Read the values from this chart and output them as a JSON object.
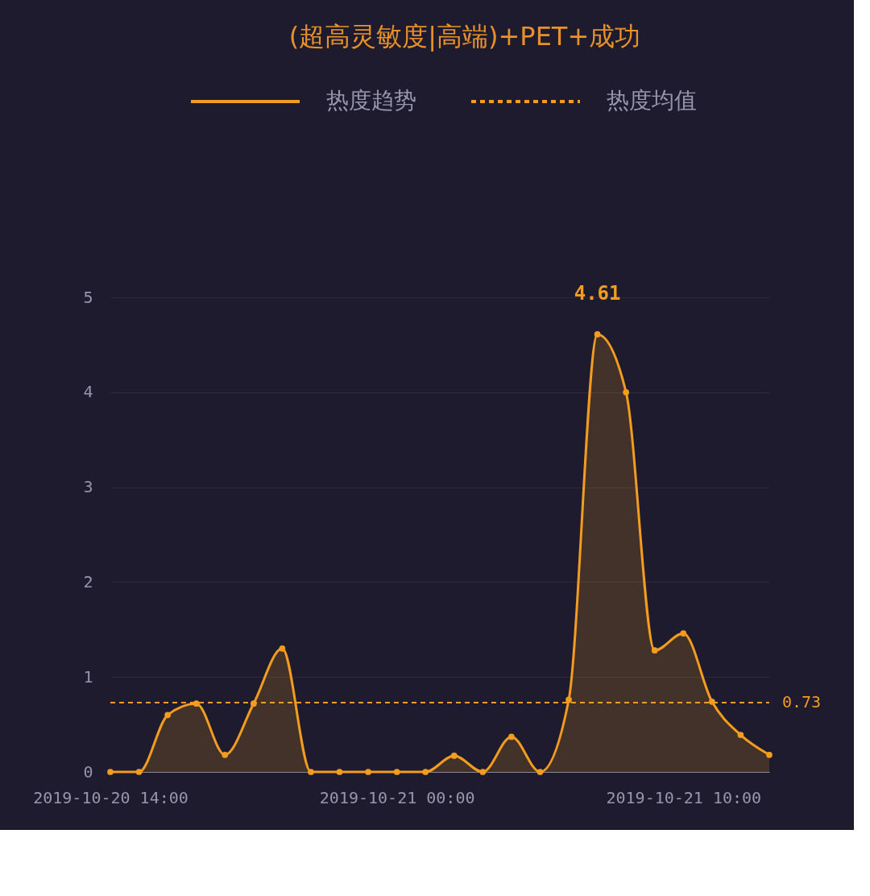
{
  "chart_data": {
    "type": "area",
    "title": "(超高灵敏度|高端)+PET+成功",
    "categories": [
      "2019-10-20 14:00",
      null,
      null,
      null,
      null,
      null,
      null,
      null,
      null,
      null,
      "2019-10-21 00:00",
      null,
      null,
      null,
      null,
      null,
      null,
      null,
      null,
      null,
      "2019-10-21 10:00",
      null,
      null,
      null
    ],
    "series": [
      {
        "name": "热度趋势",
        "color": "#f39c1f",
        "values": [
          0,
          0,
          0.6,
          0.72,
          0.18,
          0.72,
          1.3,
          0,
          0,
          0,
          0,
          0,
          0.17,
          0,
          0.37,
          0,
          0.76,
          4.61,
          4.0,
          1.28,
          1.46,
          0.74,
          0.39,
          0.18
        ]
      }
    ],
    "ylim": [
      0,
      5
    ],
    "yticks": [
      0,
      1,
      2,
      3,
      4,
      5
    ],
    "grid": "y",
    "legend": "top",
    "marker": "circle",
    "line_style": "solid",
    "ref_lines": [
      {
        "axis": "y",
        "value": 0.73,
        "label": "热度均值",
        "color": "#f39c1f",
        "line_style": "dashed"
      }
    ],
    "annotations": [
      {
        "text": "4.61",
        "y": 4.61
      },
      "0.73"
    ]
  }
}
